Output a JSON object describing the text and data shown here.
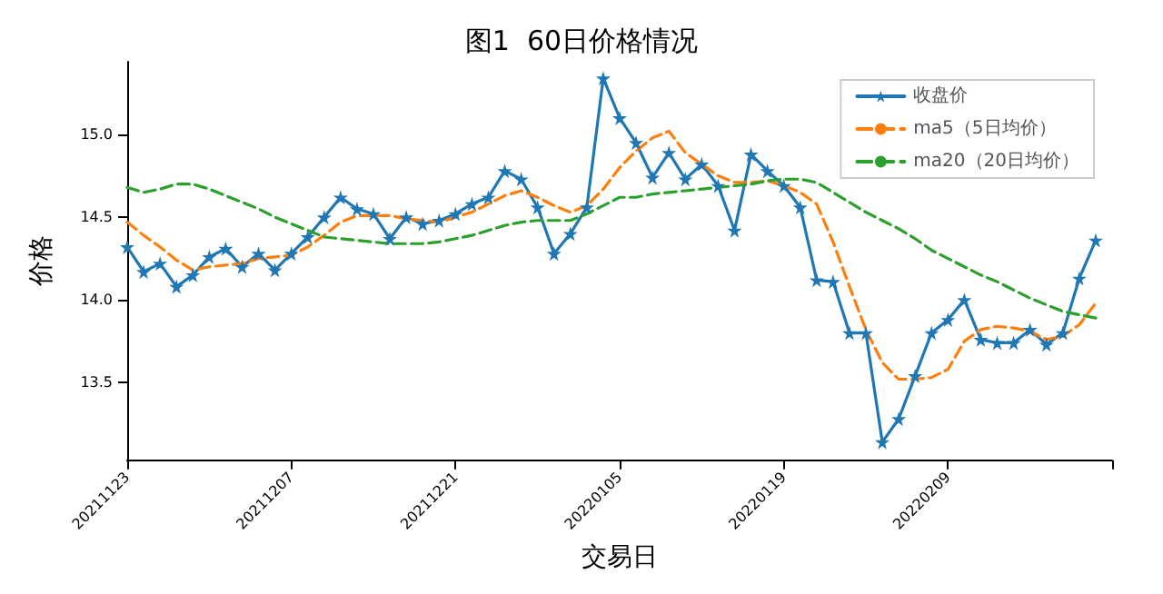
{
  "chart_data": {
    "type": "line",
    "title": "图1  60日价格情况",
    "xlabel": "交易日",
    "ylabel": "价格",
    "categories": [
      "20211123",
      null,
      null,
      null,
      null,
      null,
      null,
      null,
      null,
      null,
      "20211207",
      null,
      null,
      null,
      null,
      null,
      null,
      null,
      null,
      null,
      "20211221",
      null,
      null,
      null,
      null,
      null,
      null,
      null,
      null,
      null,
      "20220105",
      null,
      null,
      null,
      null,
      null,
      null,
      null,
      null,
      null,
      "20220119",
      null,
      null,
      null,
      null,
      null,
      null,
      null,
      null,
      null,
      "20220209",
      null,
      null,
      null,
      null,
      null,
      null,
      null,
      null,
      null,
      null
    ],
    "ylim": [
      13.03,
      15.44
    ],
    "yticks": [
      13.5,
      {
        "value": 14,
        "label": "14.0"
      },
      14.5,
      {
        "value": 15,
        "label": "15.0"
      }
    ],
    "legend": "top right",
    "grid": false,
    "series": [
      {
        "name": "收盘价",
        "color": "#1f77b4",
        "marker": "star",
        "line_style": "solid",
        "values": [
          14.32,
          14.17,
          14.22,
          14.08,
          14.15,
          14.26,
          14.31,
          14.2,
          14.28,
          14.18,
          14.28,
          14.38,
          14.5,
          14.62,
          14.55,
          14.52,
          14.37,
          14.5,
          14.46,
          14.48,
          14.52,
          14.58,
          14.62,
          14.78,
          14.73,
          14.56,
          14.28,
          14.4,
          14.56,
          15.34,
          15.1,
          14.95,
          14.74,
          14.89,
          14.73,
          14.82,
          14.69,
          14.42,
          14.88,
          14.78,
          14.69,
          14.56,
          14.12,
          14.11,
          13.8,
          13.8,
          13.14,
          13.28,
          13.54,
          13.8,
          13.88,
          14.0,
          13.76,
          13.74,
          13.74,
          13.82,
          13.73,
          13.8,
          14.13,
          14.36,
          null
        ]
      },
      {
        "name": "ma5（5日均价）",
        "color": "#ff7f0e",
        "marker": "none",
        "line_style": "dashed",
        "values": [
          14.47,
          14.39,
          14.32,
          14.24,
          14.18,
          14.2,
          14.21,
          14.22,
          14.25,
          14.26,
          14.27,
          14.32,
          14.39,
          14.47,
          14.51,
          14.51,
          14.51,
          14.49,
          14.48,
          14.47,
          14.5,
          14.53,
          14.58,
          14.63,
          14.66,
          14.62,
          14.57,
          14.53,
          14.57,
          14.67,
          14.8,
          14.9,
          14.98,
          15.02,
          14.89,
          14.82,
          14.75,
          14.71,
          14.71,
          14.72,
          14.69,
          14.65,
          14.58,
          14.35,
          14.08,
          13.82,
          13.62,
          13.52,
          13.52,
          13.53,
          13.58,
          13.75,
          13.82,
          13.84,
          13.83,
          13.81,
          13.76,
          13.78,
          13.85,
          13.98,
          null
        ]
      },
      {
        "name": "ma20（20日均价）",
        "color": "#2ca02c",
        "marker": "none",
        "line_style": "dashed",
        "values": [
          14.68,
          14.65,
          14.67,
          14.7,
          14.7,
          14.67,
          14.63,
          14.59,
          14.55,
          14.5,
          14.46,
          14.42,
          14.38,
          14.37,
          14.36,
          14.35,
          14.34,
          14.34,
          14.34,
          14.35,
          14.37,
          14.39,
          14.42,
          14.45,
          14.47,
          14.48,
          14.48,
          14.48,
          14.52,
          14.57,
          14.62,
          14.62,
          14.64,
          14.65,
          14.66,
          14.67,
          14.68,
          14.69,
          14.7,
          14.72,
          14.73,
          14.73,
          14.71,
          14.65,
          14.59,
          14.53,
          14.48,
          14.43,
          14.37,
          14.3,
          14.25,
          14.2,
          14.15,
          14.11,
          14.06,
          14.01,
          13.97,
          13.93,
          13.91,
          13.89,
          null
        ]
      }
    ]
  }
}
